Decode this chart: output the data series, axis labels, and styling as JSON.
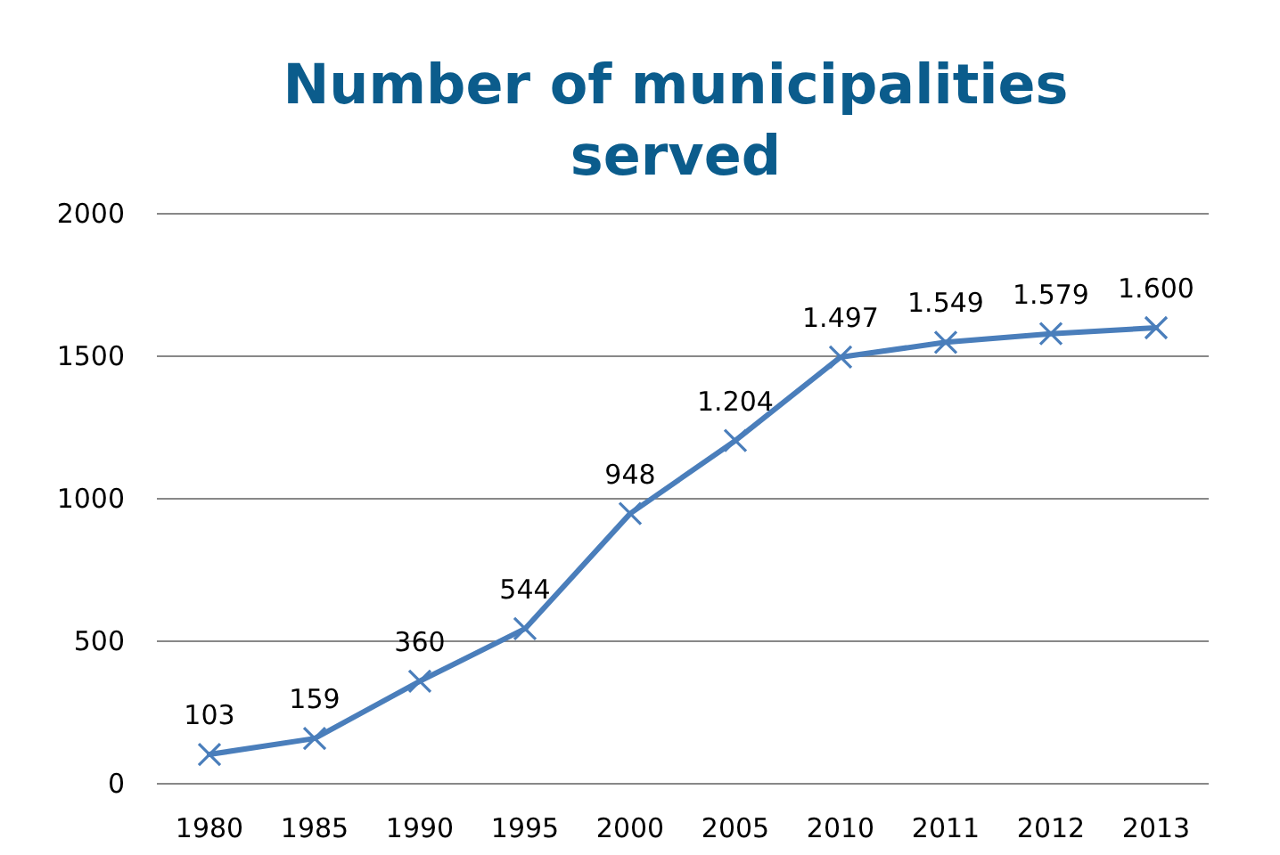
{
  "chart_data": {
    "type": "line",
    "title": "Number of municipalities served",
    "categories": [
      "1980",
      "1985",
      "1990",
      "1995",
      "2000",
      "2005",
      "2010",
      "2011",
      "2012",
      "2013"
    ],
    "series": [
      {
        "color": "#4a7ebb",
        "values": [
          103,
          159,
          360,
          544,
          948,
          1204,
          1497,
          1549,
          1579,
          1600
        ],
        "value_labels": [
          "103",
          "159",
          "360",
          "544",
          "948",
          "1.204",
          "1.497",
          "1.549",
          "1.579",
          "1.600"
        ]
      }
    ],
    "ylim": [
      0,
      2000
    ],
    "yticks": [
      0,
      500,
      1000,
      1500,
      2000
    ],
    "grid": "y",
    "marker": "cross",
    "line_style": "solid"
  }
}
